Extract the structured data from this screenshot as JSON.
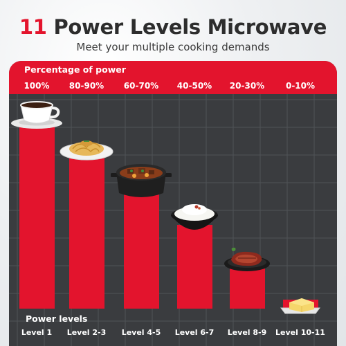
{
  "title_number": "11",
  "title_text": "Power Levels Microwave",
  "subtitle": "Meet your multiple cooking demands",
  "colors": {
    "accent": "#e3142d",
    "panel": "#3a3c3f",
    "grid": "#505357"
  },
  "chart_data": {
    "type": "bar",
    "ylabel": "Percentage of power",
    "xlabel": "Power levels",
    "categories": [
      "Level 1",
      "Level 2-3",
      "Level 4-5",
      "Level 6-7",
      "Level 8-9",
      "Level 10-11"
    ],
    "value_labels": [
      "100%",
      "80-90%",
      "60-70%",
      "40-50%",
      "20-30%",
      "0-10%"
    ],
    "values": [
      100,
      85,
      65,
      45,
      25,
      5
    ],
    "ylim": [
      0,
      100
    ],
    "grid": true,
    "icons": [
      "coffee-cup-icon",
      "pasta-plate-icon",
      "stew-pot-icon",
      "rice-bowl-icon",
      "steak-plate-icon",
      "butter-dish-icon"
    ]
  }
}
